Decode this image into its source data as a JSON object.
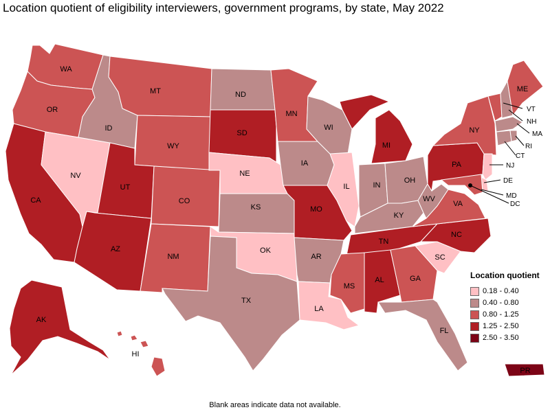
{
  "title": "Location quotient of eligibility interviewers, government programs, by state, May 2022",
  "footer": "Blank areas indicate data not available.",
  "legend": {
    "title": "Location quotient",
    "items": [
      {
        "label": "0.18 - 0.40",
        "color": "#ffc0c4"
      },
      {
        "label": "0.40 - 0.80",
        "color": "#bc8a8a"
      },
      {
        "label": "0.80 - 1.25",
        "color": "#cc5454"
      },
      {
        "label": "1.25 - 2.50",
        "color": "#b01e24"
      },
      {
        "label": "2.50 - 3.50",
        "color": "#7c0416"
      }
    ]
  },
  "states": {
    "WA": {
      "label": "WA",
      "class": 2
    },
    "OR": {
      "label": "OR",
      "class": 2
    },
    "CA": {
      "label": "CA",
      "class": 3
    },
    "NV": {
      "label": "NV",
      "class": 0
    },
    "ID": {
      "label": "ID",
      "class": 1
    },
    "MT": {
      "label": "MT",
      "class": 2
    },
    "WY": {
      "label": "WY",
      "class": 2
    },
    "UT": {
      "label": "UT",
      "class": 3
    },
    "AZ": {
      "label": "AZ",
      "class": 3
    },
    "CO": {
      "label": "CO",
      "class": 2
    },
    "NM": {
      "label": "NM",
      "class": 2
    },
    "ND": {
      "label": "ND",
      "class": 1
    },
    "SD": {
      "label": "SD",
      "class": 3
    },
    "NE": {
      "label": "NE",
      "class": 0
    },
    "KS": {
      "label": "KS",
      "class": 1
    },
    "OK": {
      "label": "OK",
      "class": 0
    },
    "TX": {
      "label": "TX",
      "class": 1
    },
    "MN": {
      "label": "MN",
      "class": 2
    },
    "IA": {
      "label": "IA",
      "class": 1
    },
    "MO": {
      "label": "MO",
      "class": 3
    },
    "AR": {
      "label": "AR",
      "class": 1
    },
    "LA": {
      "label": "LA",
      "class": 0
    },
    "WI": {
      "label": "WI",
      "class": 1
    },
    "IL": {
      "label": "IL",
      "class": 0
    },
    "MI": {
      "label": "MI",
      "class": 3
    },
    "IN": {
      "label": "IN",
      "class": 1
    },
    "OH": {
      "label": "OH",
      "class": 1
    },
    "KY": {
      "label": "KY",
      "class": 1
    },
    "TN": {
      "label": "TN",
      "class": 3
    },
    "MS": {
      "label": "MS",
      "class": 2
    },
    "AL": {
      "label": "AL",
      "class": 3
    },
    "GA": {
      "label": "GA",
      "class": 2
    },
    "FL": {
      "label": "FL",
      "class": 1
    },
    "SC": {
      "label": "SC",
      "class": 0
    },
    "NC": {
      "label": "NC",
      "class": 3
    },
    "VA": {
      "label": "VA",
      "class": 2
    },
    "WV": {
      "label": "WV",
      "class": 1
    },
    "PA": {
      "label": "PA",
      "class": 3
    },
    "NY": {
      "label": "NY",
      "class": 2
    },
    "VT": {
      "label": "VT",
      "class": 2
    },
    "NH": {
      "label": "NH",
      "class": 1
    },
    "ME": {
      "label": "ME",
      "class": 2
    },
    "MA": {
      "label": "MA",
      "class": 1
    },
    "RI": {
      "label": "RI",
      "class": 1
    },
    "CT": {
      "label": "CT",
      "class": 1
    },
    "NJ": {
      "label": "NJ",
      "class": 0
    },
    "DE": {
      "label": "DE",
      "class": 0
    },
    "MD": {
      "label": "MD",
      "class": 2
    },
    "DC": {
      "label": "DC",
      "class": 3
    },
    "AK": {
      "label": "AK",
      "class": 3
    },
    "HI": {
      "label": "HI",
      "class": 2
    },
    "PR": {
      "label": "PR",
      "class": 4
    }
  }
}
